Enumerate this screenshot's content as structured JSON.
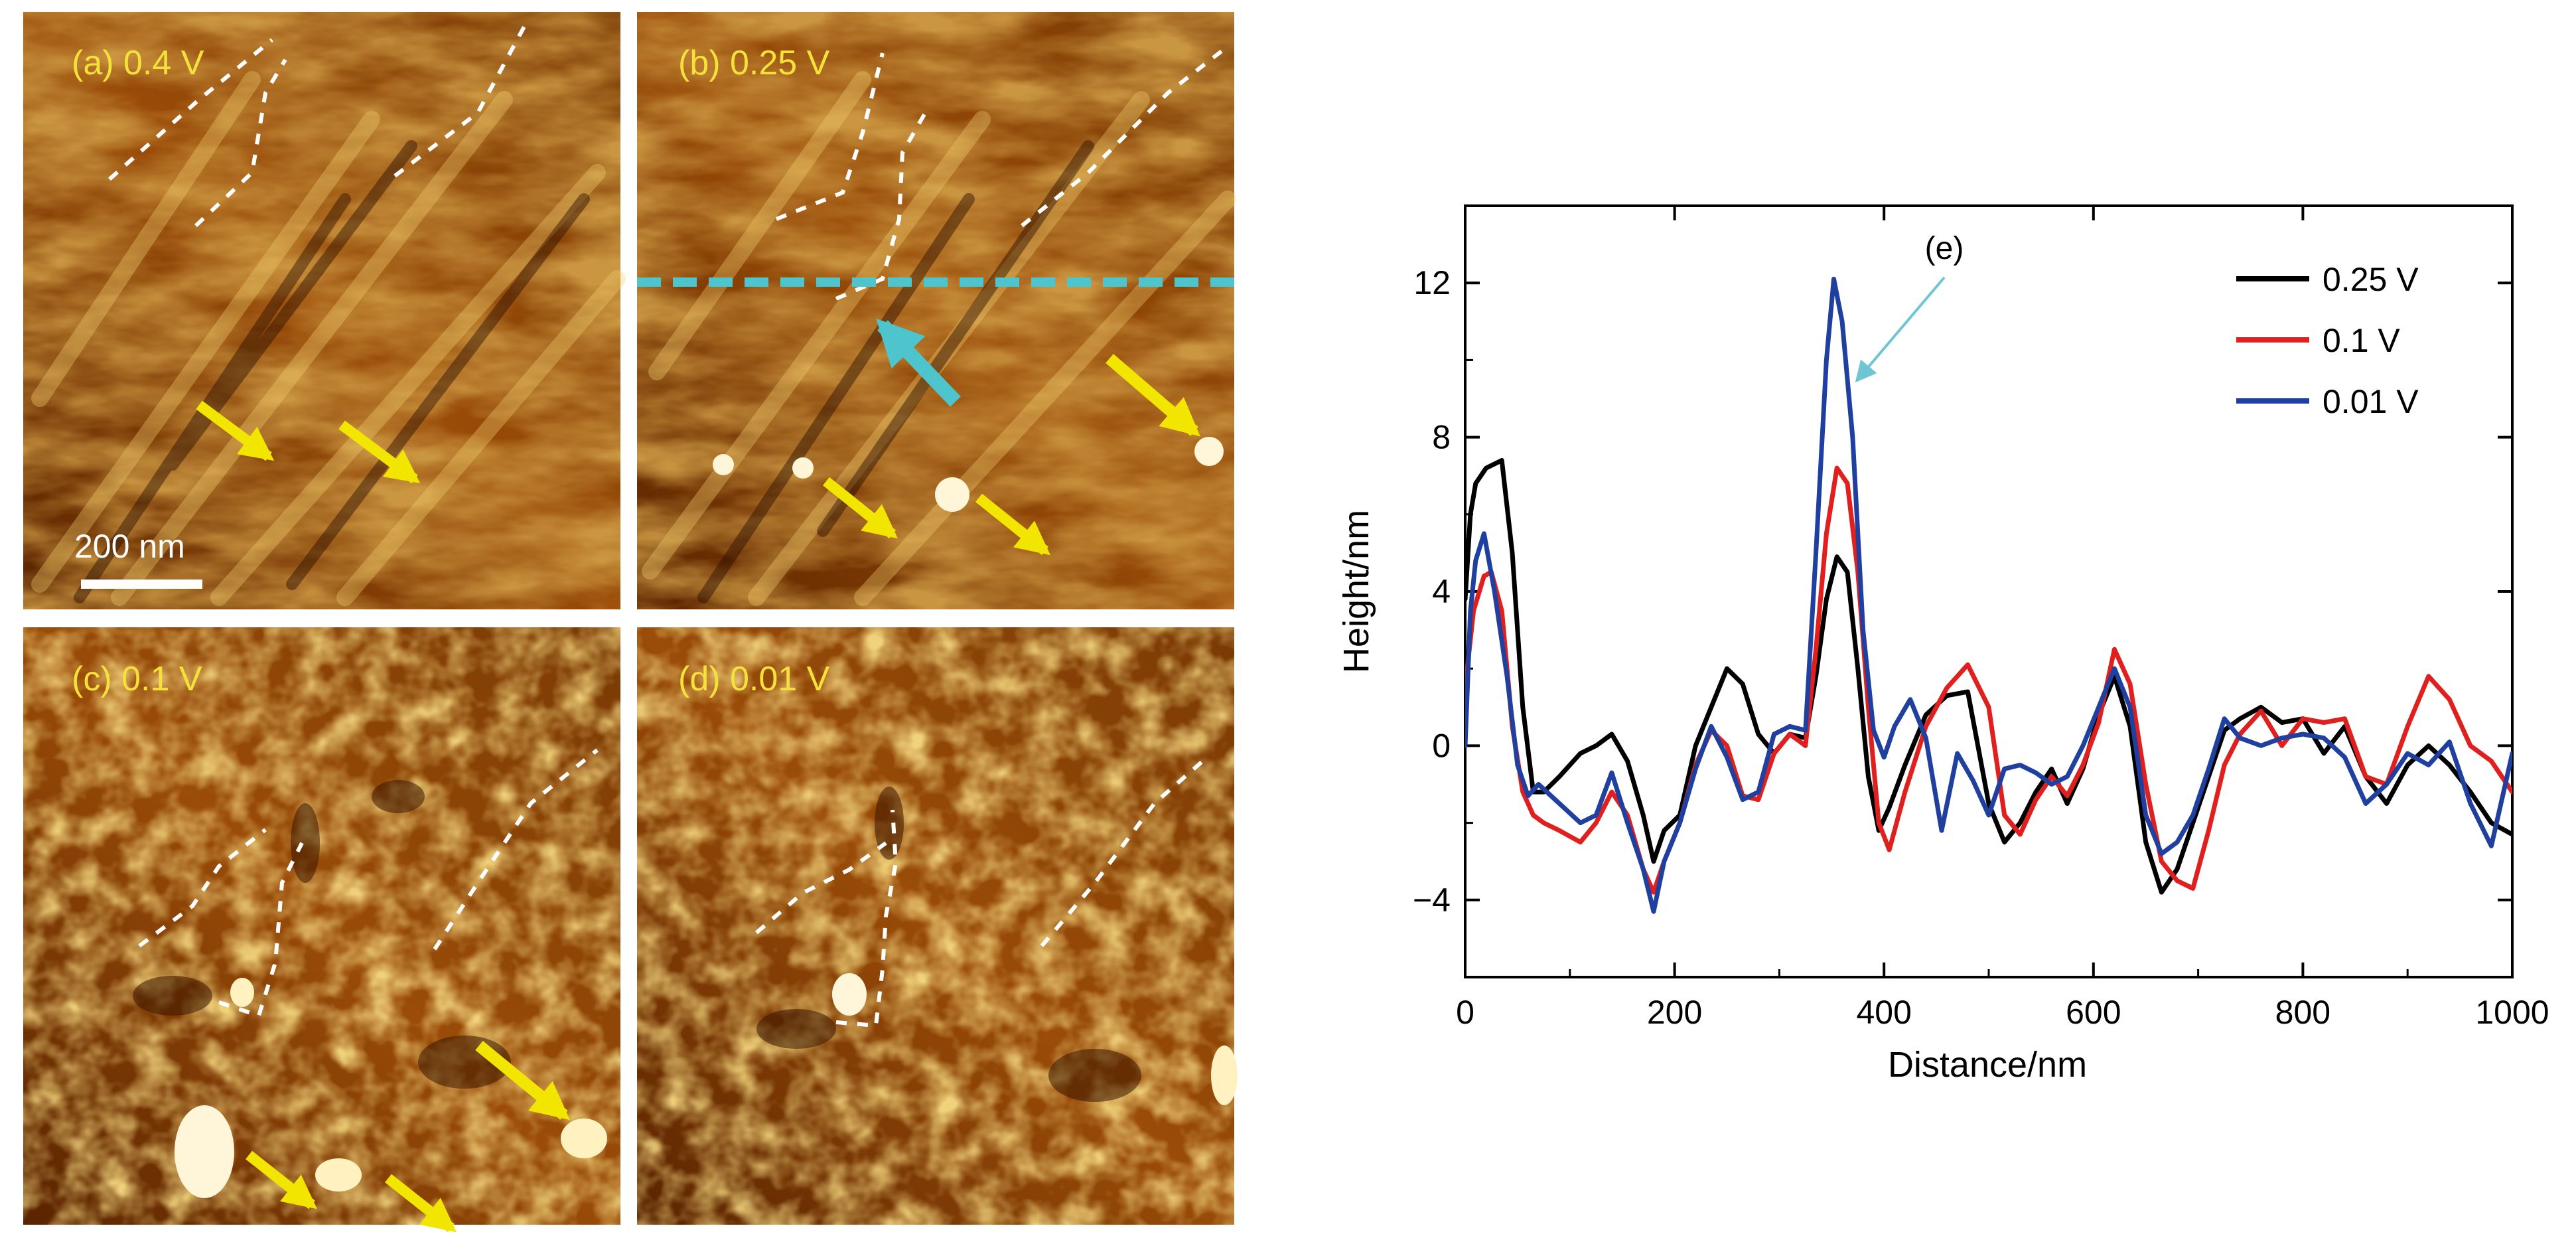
{
  "panels": [
    {
      "id": "a",
      "label": "(a) 0.4 V"
    },
    {
      "id": "b",
      "label": "(b) 0.25 V"
    },
    {
      "id": "c",
      "label": "(c) 0.1 V"
    },
    {
      "id": "d",
      "label": "(d) 0.01 V"
    }
  ],
  "scale_bar": {
    "label": "200 nm"
  },
  "colors": {
    "afm_dark": "#3a1600",
    "afm_mid": "#a8580a",
    "afm_light": "#e8b040",
    "annotation_yellow": "#f2e600",
    "annotation_cyan": "#4ec4cc",
    "panel_label": "#f4e23a"
  },
  "chart_data": {
    "type": "line",
    "panel_label": "(e)",
    "xlabel": "Distance/nm",
    "ylabel": "Height/nm",
    "xlim": [
      0,
      1000
    ],
    "ylim": [
      -6,
      14
    ],
    "xticks": [
      0,
      200,
      400,
      600,
      800,
      1000
    ],
    "yticks": [
      -4,
      0,
      4,
      8,
      12
    ],
    "grid": false,
    "legend_position": "top-right",
    "series": [
      {
        "name": "0.25 V",
        "color": "#000000",
        "x": [
          0,
          5,
          10,
          20,
          35,
          45,
          55,
          65,
          75,
          90,
          110,
          125,
          140,
          155,
          170,
          180,
          190,
          205,
          220,
          235,
          250,
          265,
          280,
          295,
          310,
          325,
          335,
          345,
          355,
          365,
          375,
          385,
          395,
          405,
          420,
          440,
          460,
          480,
          500,
          515,
          530,
          545,
          560,
          575,
          590,
          605,
          620,
          635,
          650,
          665,
          680,
          695,
          710,
          725,
          740,
          760,
          780,
          800,
          820,
          840,
          860,
          880,
          900,
          920,
          940,
          960,
          980,
          1000
        ],
        "y": [
          3.8,
          6.0,
          6.8,
          7.2,
          7.4,
          5.0,
          1.0,
          -1.2,
          -1.2,
          -0.8,
          -0.2,
          0.0,
          0.3,
          -0.4,
          -1.8,
          -3.0,
          -2.2,
          -1.8,
          0.0,
          1.0,
          2.0,
          1.6,
          0.3,
          -0.2,
          0.3,
          0.2,
          1.8,
          3.8,
          4.9,
          4.5,
          2.0,
          -0.8,
          -2.2,
          -1.6,
          -0.5,
          0.8,
          1.3,
          1.4,
          -1.5,
          -2.5,
          -2.0,
          -1.2,
          -0.6,
          -1.5,
          -0.6,
          0.8,
          1.8,
          0.5,
          -2.5,
          -3.8,
          -3.2,
          -2.0,
          -0.8,
          0.4,
          0.7,
          1.0,
          0.6,
          0.7,
          -0.2,
          0.5,
          -0.8,
          -1.5,
          -0.5,
          0.0,
          -0.5,
          -1.2,
          -2.0,
          -2.3
        ]
      },
      {
        "name": "0.1 V",
        "color": "#e0201e",
        "x": [
          0,
          8,
          18,
          25,
          35,
          45,
          55,
          65,
          75,
          90,
          110,
          125,
          140,
          155,
          170,
          180,
          190,
          205,
          220,
          235,
          250,
          265,
          280,
          295,
          310,
          325,
          335,
          345,
          355,
          365,
          375,
          385,
          395,
          405,
          420,
          440,
          460,
          480,
          500,
          515,
          530,
          545,
          560,
          575,
          590,
          605,
          620,
          635,
          650,
          665,
          680,
          695,
          710,
          725,
          740,
          760,
          780,
          800,
          820,
          840,
          860,
          880,
          900,
          920,
          940,
          960,
          980,
          1000
        ],
        "y": [
          1.5,
          3.5,
          4.4,
          4.5,
          3.5,
          0.5,
          -1.2,
          -1.8,
          -2.0,
          -2.2,
          -2.5,
          -2.0,
          -1.2,
          -1.8,
          -3.2,
          -3.8,
          -3.0,
          -2.0,
          -0.5,
          0.4,
          0.0,
          -1.3,
          -1.4,
          -0.2,
          0.3,
          0.0,
          2.5,
          5.5,
          7.2,
          6.8,
          4.5,
          1.0,
          -2.0,
          -2.7,
          -1.2,
          0.5,
          1.5,
          2.1,
          1.0,
          -1.8,
          -2.3,
          -1.4,
          -0.8,
          -1.3,
          -0.5,
          0.6,
          2.5,
          1.6,
          -1.0,
          -3.0,
          -3.5,
          -3.7,
          -2.2,
          -0.5,
          0.3,
          0.9,
          0.0,
          0.7,
          0.6,
          0.7,
          -0.8,
          -1.0,
          0.5,
          1.8,
          1.2,
          0.0,
          -0.4,
          -1.2
        ]
      },
      {
        "name": "0.01 V",
        "color": "#2040a0",
        "x": [
          0,
          5,
          10,
          18,
          28,
          40,
          50,
          60,
          70,
          90,
          110,
          125,
          140,
          155,
          170,
          180,
          190,
          205,
          220,
          235,
          250,
          265,
          280,
          295,
          310,
          325,
          335,
          345,
          352,
          360,
          370,
          380,
          390,
          400,
          410,
          425,
          440,
          455,
          470,
          485,
          500,
          515,
          530,
          545,
          560,
          575,
          590,
          605,
          620,
          635,
          650,
          665,
          680,
          695,
          710,
          725,
          740,
          760,
          780,
          800,
          820,
          840,
          860,
          880,
          900,
          920,
          940,
          960,
          980,
          1000
        ],
        "y": [
          0.0,
          3.5,
          4.8,
          5.5,
          4.0,
          1.8,
          -0.5,
          -1.3,
          -1.0,
          -1.5,
          -2.0,
          -1.8,
          -0.7,
          -2.0,
          -3.2,
          -4.3,
          -3.0,
          -2.0,
          -0.6,
          0.5,
          -0.3,
          -1.4,
          -1.2,
          0.3,
          0.5,
          0.4,
          5.0,
          10.0,
          12.1,
          11.0,
          8.0,
          3.0,
          0.4,
          -0.3,
          0.5,
          1.2,
          0.2,
          -2.2,
          -0.2,
          -0.9,
          -1.8,
          -0.6,
          -0.5,
          -0.7,
          -1.0,
          -0.8,
          0.0,
          1.0,
          2.0,
          1.0,
          -1.8,
          -2.8,
          -2.5,
          -1.8,
          -0.6,
          0.7,
          0.2,
          0.0,
          0.2,
          0.3,
          0.2,
          -0.3,
          -1.5,
          -1.0,
          -0.2,
          -0.5,
          0.1,
          -1.5,
          -2.6,
          -0.2
        ]
      }
    ],
    "annotations": [
      {
        "text": "(e)",
        "points_to_x": 375,
        "points_to_y": 9.5
      }
    ]
  }
}
